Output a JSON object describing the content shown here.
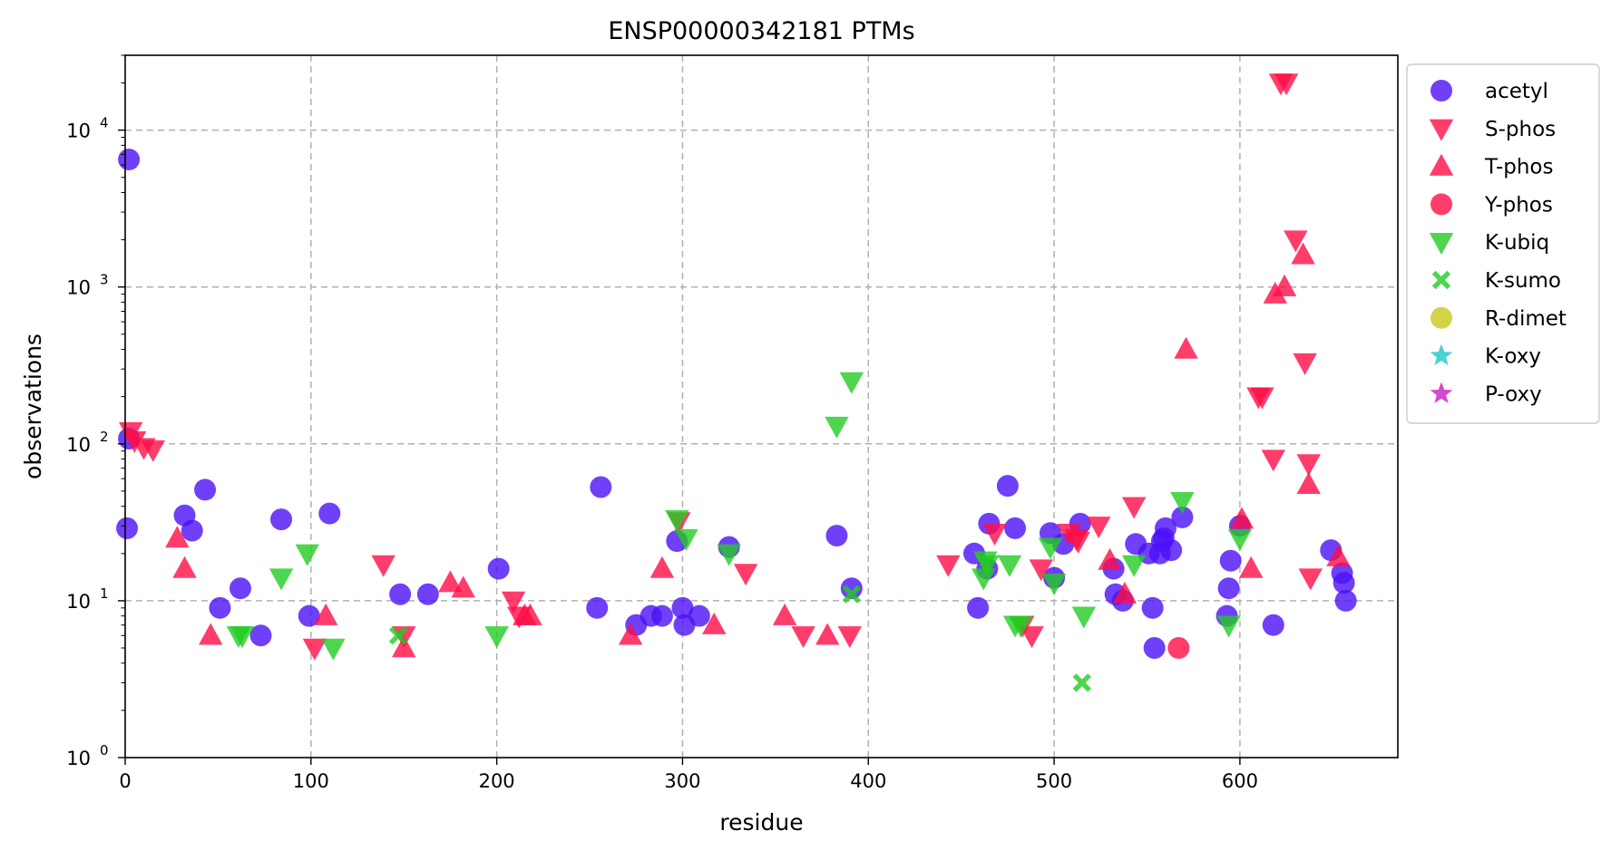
{
  "chart_data": {
    "type": "scatter",
    "title": "ENSP00000342181 PTMs",
    "xlabel": "residue",
    "ylabel": "observations",
    "xlim": [
      0,
      685
    ],
    "ylim": [
      1,
      30000
    ],
    "yscale": "log",
    "grid": true,
    "legend_position": "outside-right",
    "x_ticks": [
      0,
      100,
      200,
      300,
      400,
      500,
      600
    ],
    "y_ticks": [
      {
        "value": 1,
        "base": "10",
        "exp": "0"
      },
      {
        "value": 10,
        "base": "10",
        "exp": "1"
      },
      {
        "value": 100,
        "base": "10",
        "exp": "2"
      },
      {
        "value": 1000,
        "base": "10",
        "exp": "3"
      },
      {
        "value": 10000,
        "base": "10",
        "exp": "4"
      }
    ],
    "series": [
      {
        "name": "acetyl",
        "marker": "circle",
        "color": "#4b10f5",
        "points": [
          [
            2,
            6500
          ],
          [
            1,
            29
          ],
          [
            2,
            108
          ],
          [
            32,
            35
          ],
          [
            36,
            28
          ],
          [
            43,
            51
          ],
          [
            51,
            9
          ],
          [
            62,
            12
          ],
          [
            73,
            6
          ],
          [
            99,
            8
          ],
          [
            84,
            33
          ],
          [
            110,
            36
          ],
          [
            148,
            11
          ],
          [
            163,
            11
          ],
          [
            201,
            16
          ],
          [
            254,
            9
          ],
          [
            256,
            53
          ],
          [
            275,
            7
          ],
          [
            283,
            8
          ],
          [
            289,
            8
          ],
          [
            300,
            9
          ],
          [
            301,
            7
          ],
          [
            309,
            8
          ],
          [
            297,
            24
          ],
          [
            325,
            22
          ],
          [
            383,
            26
          ],
          [
            391,
            12
          ],
          [
            457,
            20
          ],
          [
            459,
            9
          ],
          [
            464,
            16
          ],
          [
            465,
            31
          ],
          [
            475,
            54
          ],
          [
            479,
            29
          ],
          [
            498,
            27
          ],
          [
            500,
            14
          ],
          [
            505,
            23
          ],
          [
            514,
            31
          ],
          [
            532,
            16
          ],
          [
            533,
            11
          ],
          [
            537,
            10
          ],
          [
            544,
            23
          ],
          [
            551,
            20
          ],
          [
            553,
            9
          ],
          [
            554,
            5
          ],
          [
            557,
            20
          ],
          [
            558,
            24
          ],
          [
            559,
            25
          ],
          [
            560,
            29
          ],
          [
            563,
            21
          ],
          [
            569,
            34
          ],
          [
            593,
            8
          ],
          [
            594,
            12
          ],
          [
            595,
            18
          ],
          [
            600,
            30
          ],
          [
            618,
            7
          ],
          [
            649,
            21
          ],
          [
            655,
            15
          ],
          [
            656,
            13
          ],
          [
            657,
            10
          ]
        ]
      },
      {
        "name": "S-phos",
        "marker": "triangle-down",
        "color": "#ff0d46",
        "points": [
          [
            3,
            120
          ],
          [
            5,
            105
          ],
          [
            10,
            95
          ],
          [
            15,
            92
          ],
          [
            139,
            17
          ],
          [
            102,
            5
          ],
          [
            150,
            6
          ],
          [
            209,
            10
          ],
          [
            212,
            8
          ],
          [
            298,
            32
          ],
          [
            334,
            15
          ],
          [
            365,
            6
          ],
          [
            390,
            6
          ],
          [
            443,
            17
          ],
          [
            468,
            27
          ],
          [
            483,
            7
          ],
          [
            488,
            6
          ],
          [
            493,
            16
          ],
          [
            508,
            27
          ],
          [
            512,
            25
          ],
          [
            513,
            24
          ],
          [
            524,
            30
          ],
          [
            543,
            40
          ],
          [
            610,
            200
          ],
          [
            612,
            200
          ],
          [
            618,
            80
          ],
          [
            622,
            20000
          ],
          [
            625,
            20000
          ],
          [
            630,
            2000
          ],
          [
            635,
            330
          ],
          [
            637,
            75
          ],
          [
            638,
            14
          ]
        ]
      },
      {
        "name": "T-phos",
        "marker": "triangle-up",
        "color": "#ff0d46",
        "points": [
          [
            28,
            25
          ],
          [
            32,
            16
          ],
          [
            46,
            6
          ],
          [
            108,
            8
          ],
          [
            150,
            5
          ],
          [
            175,
            13
          ],
          [
            182,
            12
          ],
          [
            215,
            8
          ],
          [
            218,
            8
          ],
          [
            272,
            6
          ],
          [
            289,
            16
          ],
          [
            317,
            7
          ],
          [
            355,
            8
          ],
          [
            378,
            6
          ],
          [
            530,
            18
          ],
          [
            538,
            11
          ],
          [
            571,
            400
          ],
          [
            601,
            33
          ],
          [
            606,
            16
          ],
          [
            619,
            900
          ],
          [
            624,
            1000
          ],
          [
            634,
            1600
          ],
          [
            637,
            55
          ],
          [
            653,
            19
          ]
        ]
      },
      {
        "name": "Y-phos",
        "marker": "circle",
        "color": "#ff0d46",
        "points": [
          [
            567,
            5
          ]
        ]
      },
      {
        "name": "K-ubiq",
        "marker": "triangle-down",
        "color": "#22cc22",
        "points": [
          [
            61,
            6
          ],
          [
            63,
            6
          ],
          [
            84,
            14
          ],
          [
            98,
            20
          ],
          [
            112,
            5
          ],
          [
            200,
            6
          ],
          [
            297,
            33
          ],
          [
            302,
            25
          ],
          [
            325,
            20
          ],
          [
            383,
            130
          ],
          [
            391,
            250
          ],
          [
            462,
            14
          ],
          [
            463,
            18
          ],
          [
            464,
            17
          ],
          [
            476,
            17
          ],
          [
            479,
            7
          ],
          [
            482,
            7
          ],
          [
            498,
            22
          ],
          [
            500,
            13
          ],
          [
            516,
            8
          ],
          [
            543,
            17
          ],
          [
            569,
            43
          ],
          [
            594,
            7
          ],
          [
            600,
            25
          ]
        ]
      },
      {
        "name": "K-sumo",
        "marker": "x",
        "color": "#22cc22",
        "points": [
          [
            147,
            6
          ],
          [
            391,
            11
          ],
          [
            515,
            3
          ]
        ]
      },
      {
        "name": "R-dimet",
        "marker": "circle",
        "color": "#c8c81a",
        "points": []
      },
      {
        "name": "K-oxy",
        "marker": "star",
        "color": "#1ac8c8",
        "points": []
      },
      {
        "name": "P-oxy",
        "marker": "star",
        "color": "#c81ac8",
        "points": []
      }
    ]
  }
}
